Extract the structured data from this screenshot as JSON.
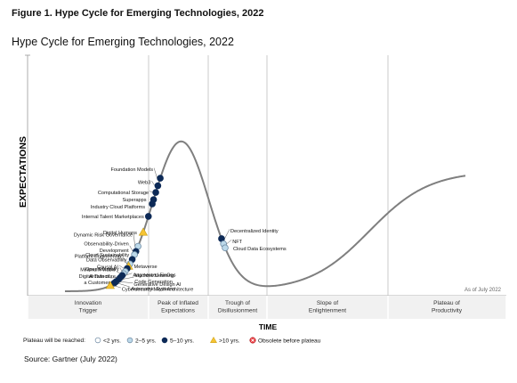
{
  "figure_caption": "Figure 1. Hype Cycle for Emerging Technologies, 2022",
  "source": "Source: Gartner (July 2022)",
  "colors": {
    "lt2": "#ffffff",
    "y2to5": "#bcd9ea",
    "y5to10": "#0d2a57",
    "gt10": "#f5c333",
    "obsolete": "#e8383d",
    "curve": "#7f7f7f",
    "stroke": "#0d2a57"
  },
  "chart_data": {
    "type": "scatter",
    "title": "Hype Cycle for Emerging Technologies, 2022",
    "xlabel": "TIME",
    "ylabel": "EXPECTATIONS",
    "as_of": "As of July 2022",
    "phases": [
      {
        "line1": "Innovation",
        "line2": "Trigger"
      },
      {
        "line1": "Peak of Inflated",
        "line2": "Expectations"
      },
      {
        "line1": "Trough of",
        "line2": "Disillusionment"
      },
      {
        "line1": "Slope of",
        "line2": "Enlightenment"
      },
      {
        "line1": "Plateau of",
        "line2": "Productivity"
      }
    ],
    "legend": {
      "title": "Plateau will be reached:",
      "items": [
        {
          "key": "lt2",
          "label": "<2 yrs."
        },
        {
          "key": "y2to5",
          "label": "2–5 yrs."
        },
        {
          "key": "y5to10",
          "label": "5–10 yrs."
        },
        {
          "key": "gt10",
          "label": ">10 yrs."
        },
        {
          "key": "obsolete",
          "label": "Obsolete before plateau"
        }
      ]
    },
    "technologies": [
      {
        "name": "Foundation Models",
        "plateau": "y5to10",
        "t": 0.238
      },
      {
        "name": "Web3",
        "plateau": "y5to10",
        "t": 0.232
      },
      {
        "name": "Computational Storage",
        "plateau": "y5to10",
        "t": 0.2268
      },
      {
        "name": "Superapps",
        "plateau": "y5to10",
        "t": 0.2213
      },
      {
        "name": "Industry Cloud Platforms",
        "plateau": "y5to10",
        "t": 0.218
      },
      {
        "name": "Internal Talent Marketplaces",
        "plateau": "y5to10",
        "t": 0.2084
      },
      {
        "name": "Digital Humans",
        "plateau": "gt10",
        "t": 0.1954
      },
      {
        "name": "Dynamic Risk Governance",
        "plateau": "y2to5",
        "t": 0.1825
      },
      {
        "name": "Observability-Driven Development",
        "plateau": "y5to10",
        "t": 0.1772
      },
      {
        "name": "Cloud Sustainability",
        "plateau": "y2to5",
        "t": 0.1737
      },
      {
        "name": "Data Observability",
        "plateau": "y5to10",
        "t": 0.168
      },
      {
        "name": "Platform Engineering",
        "plateau": "y2to5",
        "t": 0.1622
      },
      {
        "name": "Metaverse",
        "plateau": "gt10",
        "t": 0.159
      },
      {
        "name": "Causal AI",
        "plateau": "y5to10",
        "t": 0.1554
      },
      {
        "name": "OpenTelemetry",
        "plateau": "y2to5",
        "t": 0.1505
      },
      {
        "name": "Minimum Viable Architecture",
        "plateau": "y2to5",
        "t": 0.1465
      },
      {
        "name": "Augmented FinOps",
        "plateau": "y5to10",
        "t": 0.143
      },
      {
        "name": "Digital Twin of a Customer",
        "plateau": "y5to10",
        "t": 0.1385
      },
      {
        "name": "Machine Learning Code Generation",
        "plateau": "y5to10",
        "t": 0.134
      },
      {
        "name": "Generative Design AI",
        "plateau": "y5to10",
        "t": 0.1275
      },
      {
        "name": "Autonomic Systems",
        "plateau": "y5to10",
        "t": 0.123
      },
      {
        "name": "Cybersecurity Mesh Architecture",
        "plateau": "gt10",
        "t": 0.113
      },
      {
        "name": "Decentralized Identity",
        "plateau": "y5to10",
        "t": 0.391
      },
      {
        "name": "NFT",
        "plateau": "y2to5",
        "t": 0.396
      },
      {
        "name": "Cloud Data Ecosystems",
        "plateau": "y2to5",
        "t": 0.4
      }
    ]
  }
}
